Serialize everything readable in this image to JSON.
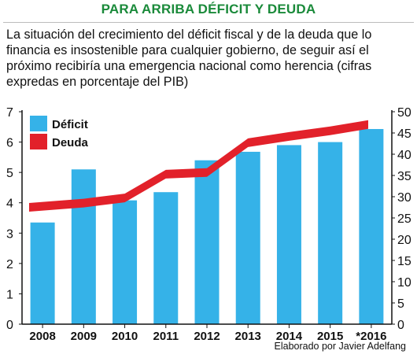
{
  "title": "PARA ARRIBA DÉFICIT Y DEUDA",
  "subtitle": "La situación del crecimiento del déficit fiscal y de la deuda que lo financia es insostenible para cualquier gobierno, de seguir así el próximo recibiría una emergencia nacional como herencia (cifras expredas en porcentaje del PIB)",
  "credit": "Elaborado por Javier Adelfang",
  "colors": {
    "title": "#1a8a3a",
    "bar": "#35b2e8",
    "line": "#e2212a",
    "text": "#111111"
  },
  "chart_data": {
    "type": "bar",
    "title": "PARA ARRIBA DÉFICIT Y DEUDA",
    "categories": [
      "2008",
      "2009",
      "2010",
      "2011",
      "2012",
      "2013",
      "2014",
      "2015",
      "*2016"
    ],
    "series": [
      {
        "name": "Déficit",
        "type": "bar",
        "axis": "left",
        "values": [
          3.35,
          5.1,
          4.08,
          4.35,
          5.4,
          5.68,
          5.9,
          6.0,
          6.43
        ]
      },
      {
        "name": "Deuda",
        "type": "line",
        "axis": "right",
        "values": [
          27.5,
          28.5,
          29.7,
          35.3,
          35.7,
          42.7,
          44.2,
          45.5,
          47.0
        ]
      }
    ],
    "left_axis": {
      "ylim": [
        0,
        7
      ],
      "ticks": [
        "0",
        "1",
        "2",
        "3",
        "4",
        "5",
        "6",
        "7"
      ]
    },
    "right_axis": {
      "ylim": [
        0,
        50
      ],
      "ticks": [
        "0",
        "5",
        "10",
        "15",
        "20",
        "25",
        "30",
        "35",
        "40",
        "45",
        "50"
      ]
    },
    "legend": {
      "position": "top-left",
      "entries": [
        "Déficit",
        "Deuda"
      ]
    },
    "grid": false
  }
}
